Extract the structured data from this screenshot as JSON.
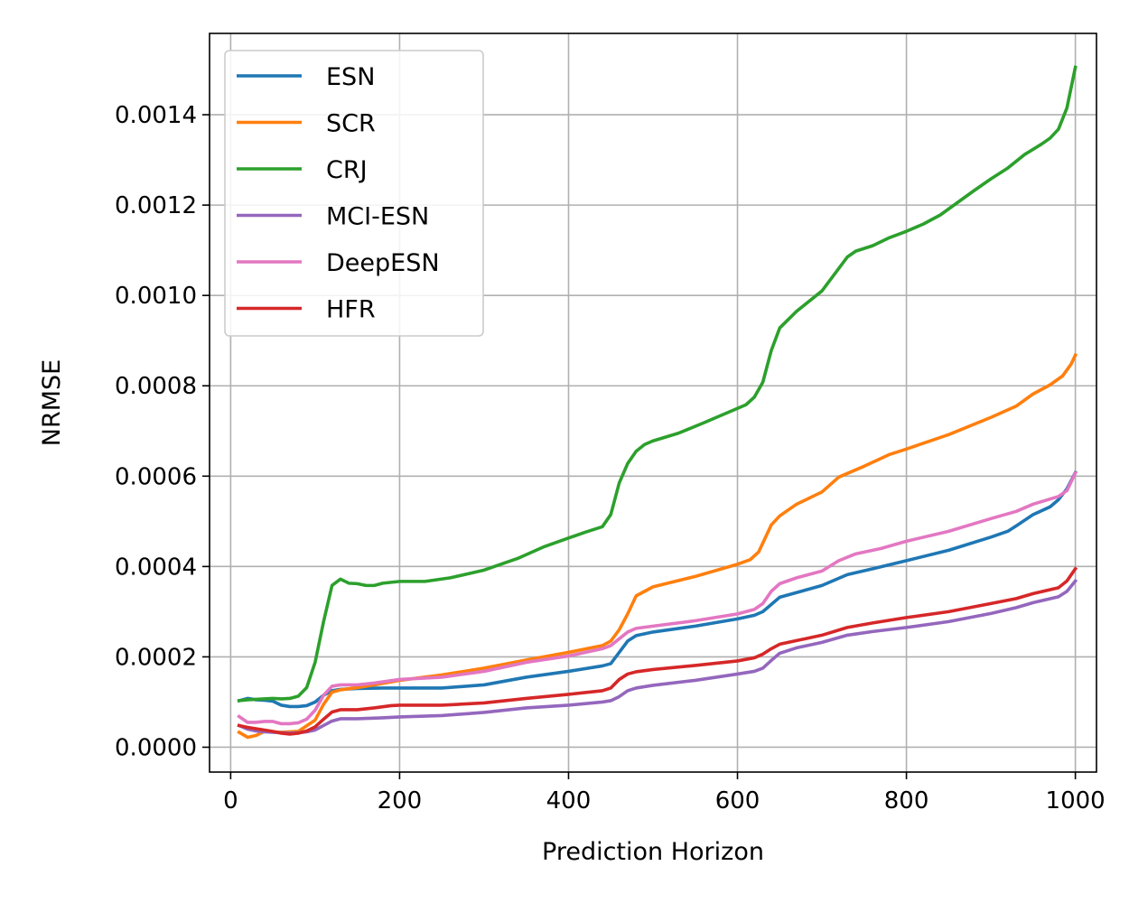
{
  "chart_data": {
    "type": "line",
    "title": "",
    "xlabel": "Prediction Horizon",
    "ylabel": "NRMSE",
    "xlim": [
      -25,
      1025
    ],
    "ylim": [
      -5.5e-05,
      0.00158
    ],
    "xticks": [
      0,
      200,
      400,
      600,
      800,
      1000
    ],
    "xtick_labels": [
      "0",
      "200",
      "400",
      "600",
      "800",
      "1000"
    ],
    "yticks": [
      0,
      0.0002,
      0.0004,
      0.0006,
      0.0008,
      0.001,
      0.0012,
      0.0014
    ],
    "ytick_labels": [
      "0.0000",
      "0.0002",
      "0.0004",
      "0.0006",
      "0.0008",
      "0.0010",
      "0.0012",
      "0.0014"
    ],
    "grid": true,
    "legend_position": "top-left",
    "series": [
      {
        "name": "ESN",
        "color": "#1f77b4",
        "points": [
          [
            10,
            0.000103
          ],
          [
            20,
            0.000108
          ],
          [
            30,
            0.000105
          ],
          [
            40,
            0.000104
          ],
          [
            50,
            0.000102
          ],
          [
            60,
            9.3e-05
          ],
          [
            70,
            9e-05
          ],
          [
            80,
            9e-05
          ],
          [
            90,
            9.2e-05
          ],
          [
            100,
            0.0001
          ],
          [
            110,
            0.000115
          ],
          [
            120,
            0.000125
          ],
          [
            130,
            0.000128
          ],
          [
            150,
            0.00013
          ],
          [
            180,
            0.000131
          ],
          [
            200,
            0.000131
          ],
          [
            250,
            0.000131
          ],
          [
            300,
            0.000138
          ],
          [
            350,
            0.000155
          ],
          [
            400,
            0.000168
          ],
          [
            440,
            0.00018
          ],
          [
            450,
            0.000185
          ],
          [
            460,
            0.00021
          ],
          [
            470,
            0.000235
          ],
          [
            480,
            0.000247
          ],
          [
            500,
            0.000255
          ],
          [
            550,
            0.000268
          ],
          [
            600,
            0.000284
          ],
          [
            620,
            0.000292
          ],
          [
            630,
            0.0003
          ],
          [
            650,
            0.000332
          ],
          [
            700,
            0.000358
          ],
          [
            730,
            0.000382
          ],
          [
            760,
            0.000395
          ],
          [
            800,
            0.000413
          ],
          [
            850,
            0.000436
          ],
          [
            900,
            0.000465
          ],
          [
            920,
            0.000478
          ],
          [
            930,
            0.00049
          ],
          [
            950,
            0.000515
          ],
          [
            970,
            0.000532
          ],
          [
            980,
            0.000548
          ],
          [
            990,
            0.000572
          ],
          [
            1000,
            0.000608
          ]
        ]
      },
      {
        "name": "SCR",
        "color": "#ff7f0e",
        "points": [
          [
            10,
            3.3e-05
          ],
          [
            20,
            2.2e-05
          ],
          [
            30,
            2.6e-05
          ],
          [
            40,
            3.5e-05
          ],
          [
            60,
            3.3e-05
          ],
          [
            80,
            3.5e-05
          ],
          [
            100,
            6e-05
          ],
          [
            110,
            9.5e-05
          ],
          [
            120,
            0.000122
          ],
          [
            130,
            0.000127
          ],
          [
            150,
            0.000132
          ],
          [
            170,
            0.000138
          ],
          [
            200,
            0.000148
          ],
          [
            250,
            0.00016
          ],
          [
            300,
            0.000175
          ],
          [
            350,
            0.000193
          ],
          [
            400,
            0.00021
          ],
          [
            440,
            0.000225
          ],
          [
            450,
            0.000235
          ],
          [
            460,
            0.00026
          ],
          [
            470,
            0.000295
          ],
          [
            480,
            0.000335
          ],
          [
            500,
            0.000355
          ],
          [
            550,
            0.000378
          ],
          [
            600,
            0.000405
          ],
          [
            615,
            0.000415
          ],
          [
            625,
            0.000432
          ],
          [
            640,
            0.000492
          ],
          [
            650,
            0.000512
          ],
          [
            670,
            0.000538
          ],
          [
            700,
            0.000565
          ],
          [
            720,
            0.000598
          ],
          [
            750,
            0.000622
          ],
          [
            780,
            0.000648
          ],
          [
            800,
            0.00066
          ],
          [
            850,
            0.000692
          ],
          [
            900,
            0.00073
          ],
          [
            930,
            0.000755
          ],
          [
            950,
            0.000782
          ],
          [
            970,
            0.000802
          ],
          [
            985,
            0.000822
          ],
          [
            995,
            0.000848
          ],
          [
            1000,
            0.000868
          ]
        ]
      },
      {
        "name": "CRJ",
        "color": "#2ca02c",
        "points": [
          [
            10,
            0.000103
          ],
          [
            20,
            0.000105
          ],
          [
            30,
            0.000106
          ],
          [
            40,
            0.000107
          ],
          [
            50,
            0.000108
          ],
          [
            60,
            0.000107
          ],
          [
            70,
            0.000108
          ],
          [
            80,
            0.000113
          ],
          [
            90,
            0.000132
          ],
          [
            100,
            0.000188
          ],
          [
            110,
            0.000278
          ],
          [
            120,
            0.000358
          ],
          [
            130,
            0.000372
          ],
          [
            140,
            0.000363
          ],
          [
            150,
            0.000362
          ],
          [
            160,
            0.000358
          ],
          [
            170,
            0.000358
          ],
          [
            180,
            0.000363
          ],
          [
            200,
            0.000367
          ],
          [
            230,
            0.000367
          ],
          [
            260,
            0.000375
          ],
          [
            300,
            0.000392
          ],
          [
            340,
            0.000418
          ],
          [
            370,
            0.000443
          ],
          [
            400,
            0.000463
          ],
          [
            420,
            0.000476
          ],
          [
            440,
            0.000488
          ],
          [
            450,
            0.000515
          ],
          [
            460,
            0.000585
          ],
          [
            470,
            0.000628
          ],
          [
            480,
            0.000655
          ],
          [
            490,
            0.00067
          ],
          [
            500,
            0.000678
          ],
          [
            530,
            0.000695
          ],
          [
            560,
            0.000718
          ],
          [
            590,
            0.000742
          ],
          [
            610,
            0.000758
          ],
          [
            620,
            0.000775
          ],
          [
            630,
            0.000808
          ],
          [
            640,
            0.000878
          ],
          [
            650,
            0.000928
          ],
          [
            670,
            0.000965
          ],
          [
            690,
            0.000995
          ],
          [
            700,
            0.00101
          ],
          [
            720,
            0.00106
          ],
          [
            730,
            0.001085
          ],
          [
            740,
            0.001098
          ],
          [
            760,
            0.00111
          ],
          [
            780,
            0.001128
          ],
          [
            800,
            0.001142
          ],
          [
            820,
            0.001158
          ],
          [
            840,
            0.001178
          ],
          [
            860,
            0.001205
          ],
          [
            880,
            0.001232
          ],
          [
            900,
            0.001258
          ],
          [
            920,
            0.001282
          ],
          [
            940,
            0.001312
          ],
          [
            960,
            0.001335
          ],
          [
            970,
            0.001348
          ],
          [
            980,
            0.001368
          ],
          [
            990,
            0.001415
          ],
          [
            1000,
            0.001505
          ]
        ]
      },
      {
        "name": "MCI-ESN",
        "color": "#9467bd",
        "points": [
          [
            10,
            4.8e-05
          ],
          [
            20,
            4e-05
          ],
          [
            30,
            3.6e-05
          ],
          [
            40,
            3.4e-05
          ],
          [
            50,
            3.3e-05
          ],
          [
            60,
            3.2e-05
          ],
          [
            70,
            3.1e-05
          ],
          [
            80,
            3.2e-05
          ],
          [
            90,
            3.4e-05
          ],
          [
            100,
            3.8e-05
          ],
          [
            110,
            4.8e-05
          ],
          [
            120,
            5.8e-05
          ],
          [
            130,
            6.3e-05
          ],
          [
            150,
            6.3e-05
          ],
          [
            180,
            6.5e-05
          ],
          [
            200,
            6.7e-05
          ],
          [
            250,
            7e-05
          ],
          [
            300,
            7.7e-05
          ],
          [
            350,
            8.7e-05
          ],
          [
            400,
            9.3e-05
          ],
          [
            440,
            0.0001
          ],
          [
            450,
            0.000103
          ],
          [
            460,
            0.000112
          ],
          [
            470,
            0.000125
          ],
          [
            480,
            0.000131
          ],
          [
            500,
            0.000137
          ],
          [
            550,
            0.000148
          ],
          [
            600,
            0.000162
          ],
          [
            620,
            0.000168
          ],
          [
            630,
            0.000175
          ],
          [
            640,
            0.000192
          ],
          [
            650,
            0.000208
          ],
          [
            670,
            0.00022
          ],
          [
            700,
            0.000232
          ],
          [
            730,
            0.000248
          ],
          [
            760,
            0.000256
          ],
          [
            800,
            0.000265
          ],
          [
            850,
            0.000278
          ],
          [
            900,
            0.000296
          ],
          [
            930,
            0.000309
          ],
          [
            950,
            0.00032
          ],
          [
            980,
            0.000333
          ],
          [
            990,
            0.000345
          ],
          [
            1000,
            0.000368
          ]
        ]
      },
      {
        "name": "DeepESN",
        "color": "#e377c2",
        "points": [
          [
            10,
            6.8e-05
          ],
          [
            20,
            5.5e-05
          ],
          [
            30,
            5.5e-05
          ],
          [
            40,
            5.7e-05
          ],
          [
            50,
            5.7e-05
          ],
          [
            60,
            5.2e-05
          ],
          [
            70,
            5.2e-05
          ],
          [
            80,
            5.4e-05
          ],
          [
            90,
            6.2e-05
          ],
          [
            100,
            8.2e-05
          ],
          [
            110,
            0.000115
          ],
          [
            120,
            0.000135
          ],
          [
            130,
            0.000138
          ],
          [
            150,
            0.000138
          ],
          [
            170,
            0.000142
          ],
          [
            200,
            0.00015
          ],
          [
            250,
            0.000155
          ],
          [
            300,
            0.000168
          ],
          [
            350,
            0.000188
          ],
          [
            400,
            0.000202
          ],
          [
            440,
            0.000218
          ],
          [
            450,
            0.000225
          ],
          [
            460,
            0.00024
          ],
          [
            470,
            0.000255
          ],
          [
            480,
            0.000263
          ],
          [
            500,
            0.000268
          ],
          [
            550,
            0.00028
          ],
          [
            600,
            0.000295
          ],
          [
            620,
            0.000305
          ],
          [
            630,
            0.000318
          ],
          [
            640,
            0.000345
          ],
          [
            650,
            0.000362
          ],
          [
            670,
            0.000375
          ],
          [
            700,
            0.00039
          ],
          [
            720,
            0.000413
          ],
          [
            740,
            0.000428
          ],
          [
            770,
            0.00044
          ],
          [
            800,
            0.000456
          ],
          [
            850,
            0.000478
          ],
          [
            900,
            0.000506
          ],
          [
            930,
            0.000522
          ],
          [
            950,
            0.000538
          ],
          [
            980,
            0.000555
          ],
          [
            990,
            0.000568
          ],
          [
            1000,
            0.000607
          ]
        ]
      },
      {
        "name": "HFR",
        "color": "#d62728",
        "points": [
          [
            10,
            4.8e-05
          ],
          [
            20,
            4.4e-05
          ],
          [
            30,
            4.1e-05
          ],
          [
            40,
            3.8e-05
          ],
          [
            50,
            3.5e-05
          ],
          [
            60,
            3.1e-05
          ],
          [
            70,
            2.9e-05
          ],
          [
            80,
            3.1e-05
          ],
          [
            90,
            3.6e-05
          ],
          [
            100,
            4.5e-05
          ],
          [
            110,
            6.2e-05
          ],
          [
            120,
            7.8e-05
          ],
          [
            130,
            8.3e-05
          ],
          [
            150,
            8.3e-05
          ],
          [
            170,
            8.7e-05
          ],
          [
            190,
            9.2e-05
          ],
          [
            200,
            9.3e-05
          ],
          [
            250,
            9.3e-05
          ],
          [
            300,
            9.8e-05
          ],
          [
            350,
            0.000108
          ],
          [
            400,
            0.000117
          ],
          [
            440,
            0.000125
          ],
          [
            450,
            0.000131
          ],
          [
            460,
            0.00015
          ],
          [
            470,
            0.000162
          ],
          [
            480,
            0.000167
          ],
          [
            500,
            0.000172
          ],
          [
            550,
            0.000181
          ],
          [
            600,
            0.000191
          ],
          [
            620,
            0.000198
          ],
          [
            630,
            0.000206
          ],
          [
            640,
            0.000218
          ],
          [
            650,
            0.000228
          ],
          [
            670,
            0.000236
          ],
          [
            700,
            0.000248
          ],
          [
            730,
            0.000265
          ],
          [
            760,
            0.000275
          ],
          [
            800,
            0.000287
          ],
          [
            850,
            0.0003
          ],
          [
            900,
            0.000318
          ],
          [
            930,
            0.000329
          ],
          [
            950,
            0.00034
          ],
          [
            980,
            0.000353
          ],
          [
            990,
            0.000368
          ],
          [
            1000,
            0.000395
          ]
        ]
      }
    ]
  }
}
